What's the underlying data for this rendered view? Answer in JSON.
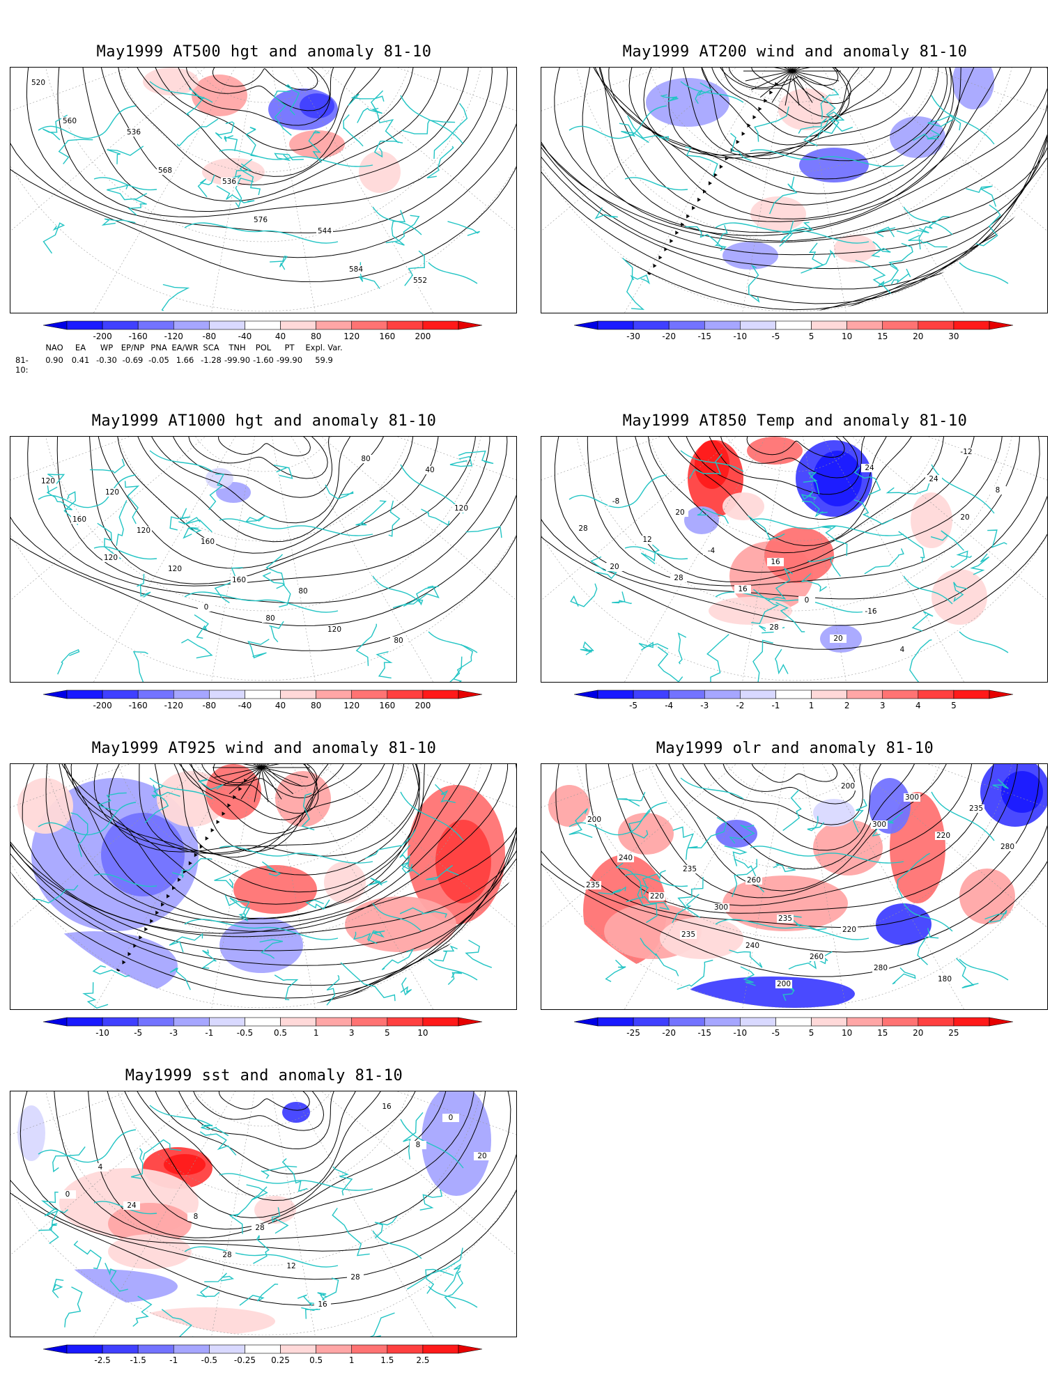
{
  "panels": [
    {
      "title": "May1999 AT500 hgt and anomaly 81-10",
      "kind": "contour",
      "contour_labels": [
        "520",
        "536",
        "536",
        "544",
        "552",
        "560",
        "568",
        "576",
        "584"
      ],
      "colorbar": [
        "-200",
        "-160",
        "-120",
        "-80",
        "-40",
        "40",
        "80",
        "120",
        "160",
        "200"
      ]
    },
    {
      "title": "May1999 AT200 wind and anomaly 81-10",
      "kind": "stream",
      "contour_labels": [],
      "colorbar": [
        "-30",
        "-20",
        "-15",
        "-10",
        "-5",
        "5",
        "10",
        "15",
        "20",
        "30"
      ]
    },
    {
      "title": "May1999 AT1000 hgt and anomaly 81-10",
      "kind": "contour",
      "contour_labels": [
        "120",
        "160",
        "80",
        "80",
        "120",
        "120",
        "160",
        "120",
        "40",
        "160",
        "120",
        "80",
        "80",
        "120",
        "120",
        "0"
      ],
      "colorbar": [
        "-200",
        "-160",
        "-120",
        "-80",
        "-40",
        "40",
        "80",
        "120",
        "160",
        "200"
      ]
    },
    {
      "title": "May1999 AT850 Temp and anomaly 81-10",
      "kind": "contour",
      "contour_labels": [
        "20",
        "16",
        "-16",
        "-12",
        "-8",
        "-4",
        "0",
        "4",
        "8",
        "12",
        "16",
        "20",
        "24",
        "28",
        "28",
        "28",
        "24",
        "20",
        "20"
      ],
      "colorbar": [
        "-5",
        "-4",
        "-3",
        "-2",
        "-1",
        "1",
        "2",
        "3",
        "4",
        "5"
      ]
    },
    {
      "title": "May1999 AT925 wind and anomaly 81-10",
      "kind": "stream",
      "contour_labels": [],
      "colorbar": [
        "-10",
        "-5",
        "-3",
        "-1",
        "-0.5",
        "0.5",
        "1",
        "3",
        "5",
        "10"
      ]
    },
    {
      "title": "May1999 olr and anomaly 81-10",
      "kind": "contour",
      "contour_labels": [
        "260",
        "220",
        "180",
        "200",
        "235",
        "235",
        "280",
        "235",
        "240",
        "300",
        "260",
        "300",
        "280",
        "220",
        "240",
        "200",
        "220",
        "235",
        "235",
        "200",
        "300"
      ],
      "colorbar": [
        "-25",
        "-20",
        "-15",
        "-10",
        "-5",
        "5",
        "10",
        "15",
        "20",
        "25"
      ]
    },
    {
      "title": "May1999 sst and anomaly 81-10",
      "kind": "contour",
      "contour_labels": [
        "28",
        "28",
        "0",
        "4",
        "8",
        "12",
        "16",
        "20",
        "24",
        "28",
        "16",
        "8",
        "0"
      ],
      "colorbar": [
        "-2.5",
        "-1.5",
        "-1",
        "-0.5",
        "-0.25",
        "0.25",
        "0.5",
        "1",
        "1.5",
        "2.5"
      ]
    }
  ],
  "indices": {
    "headers": [
      "NAO",
      "EA",
      "WP",
      "EP/NP",
      "PNA",
      "EA/WR",
      "SCA",
      "TNH",
      "POL",
      "PT",
      "Expl. Var."
    ],
    "row_label": "81-10:",
    "values": [
      "0.90",
      "0.41",
      "-0.30",
      "-0.69",
      "-0.05",
      "1.66",
      "-1.28",
      "-99.90",
      "-1.60",
      "-99.90",
      "59.9"
    ]
  },
  "colors": {
    "coast": "#22c4c4",
    "contour": "#000000",
    "blue_scale": [
      "#1a1aff",
      "#4040ff",
      "#7373ff",
      "#a6a6ff",
      "#d9d9ff"
    ],
    "red_scale": [
      "#ffd9d9",
      "#ffa6a6",
      "#ff7373",
      "#ff4040",
      "#ff1a1a"
    ]
  }
}
